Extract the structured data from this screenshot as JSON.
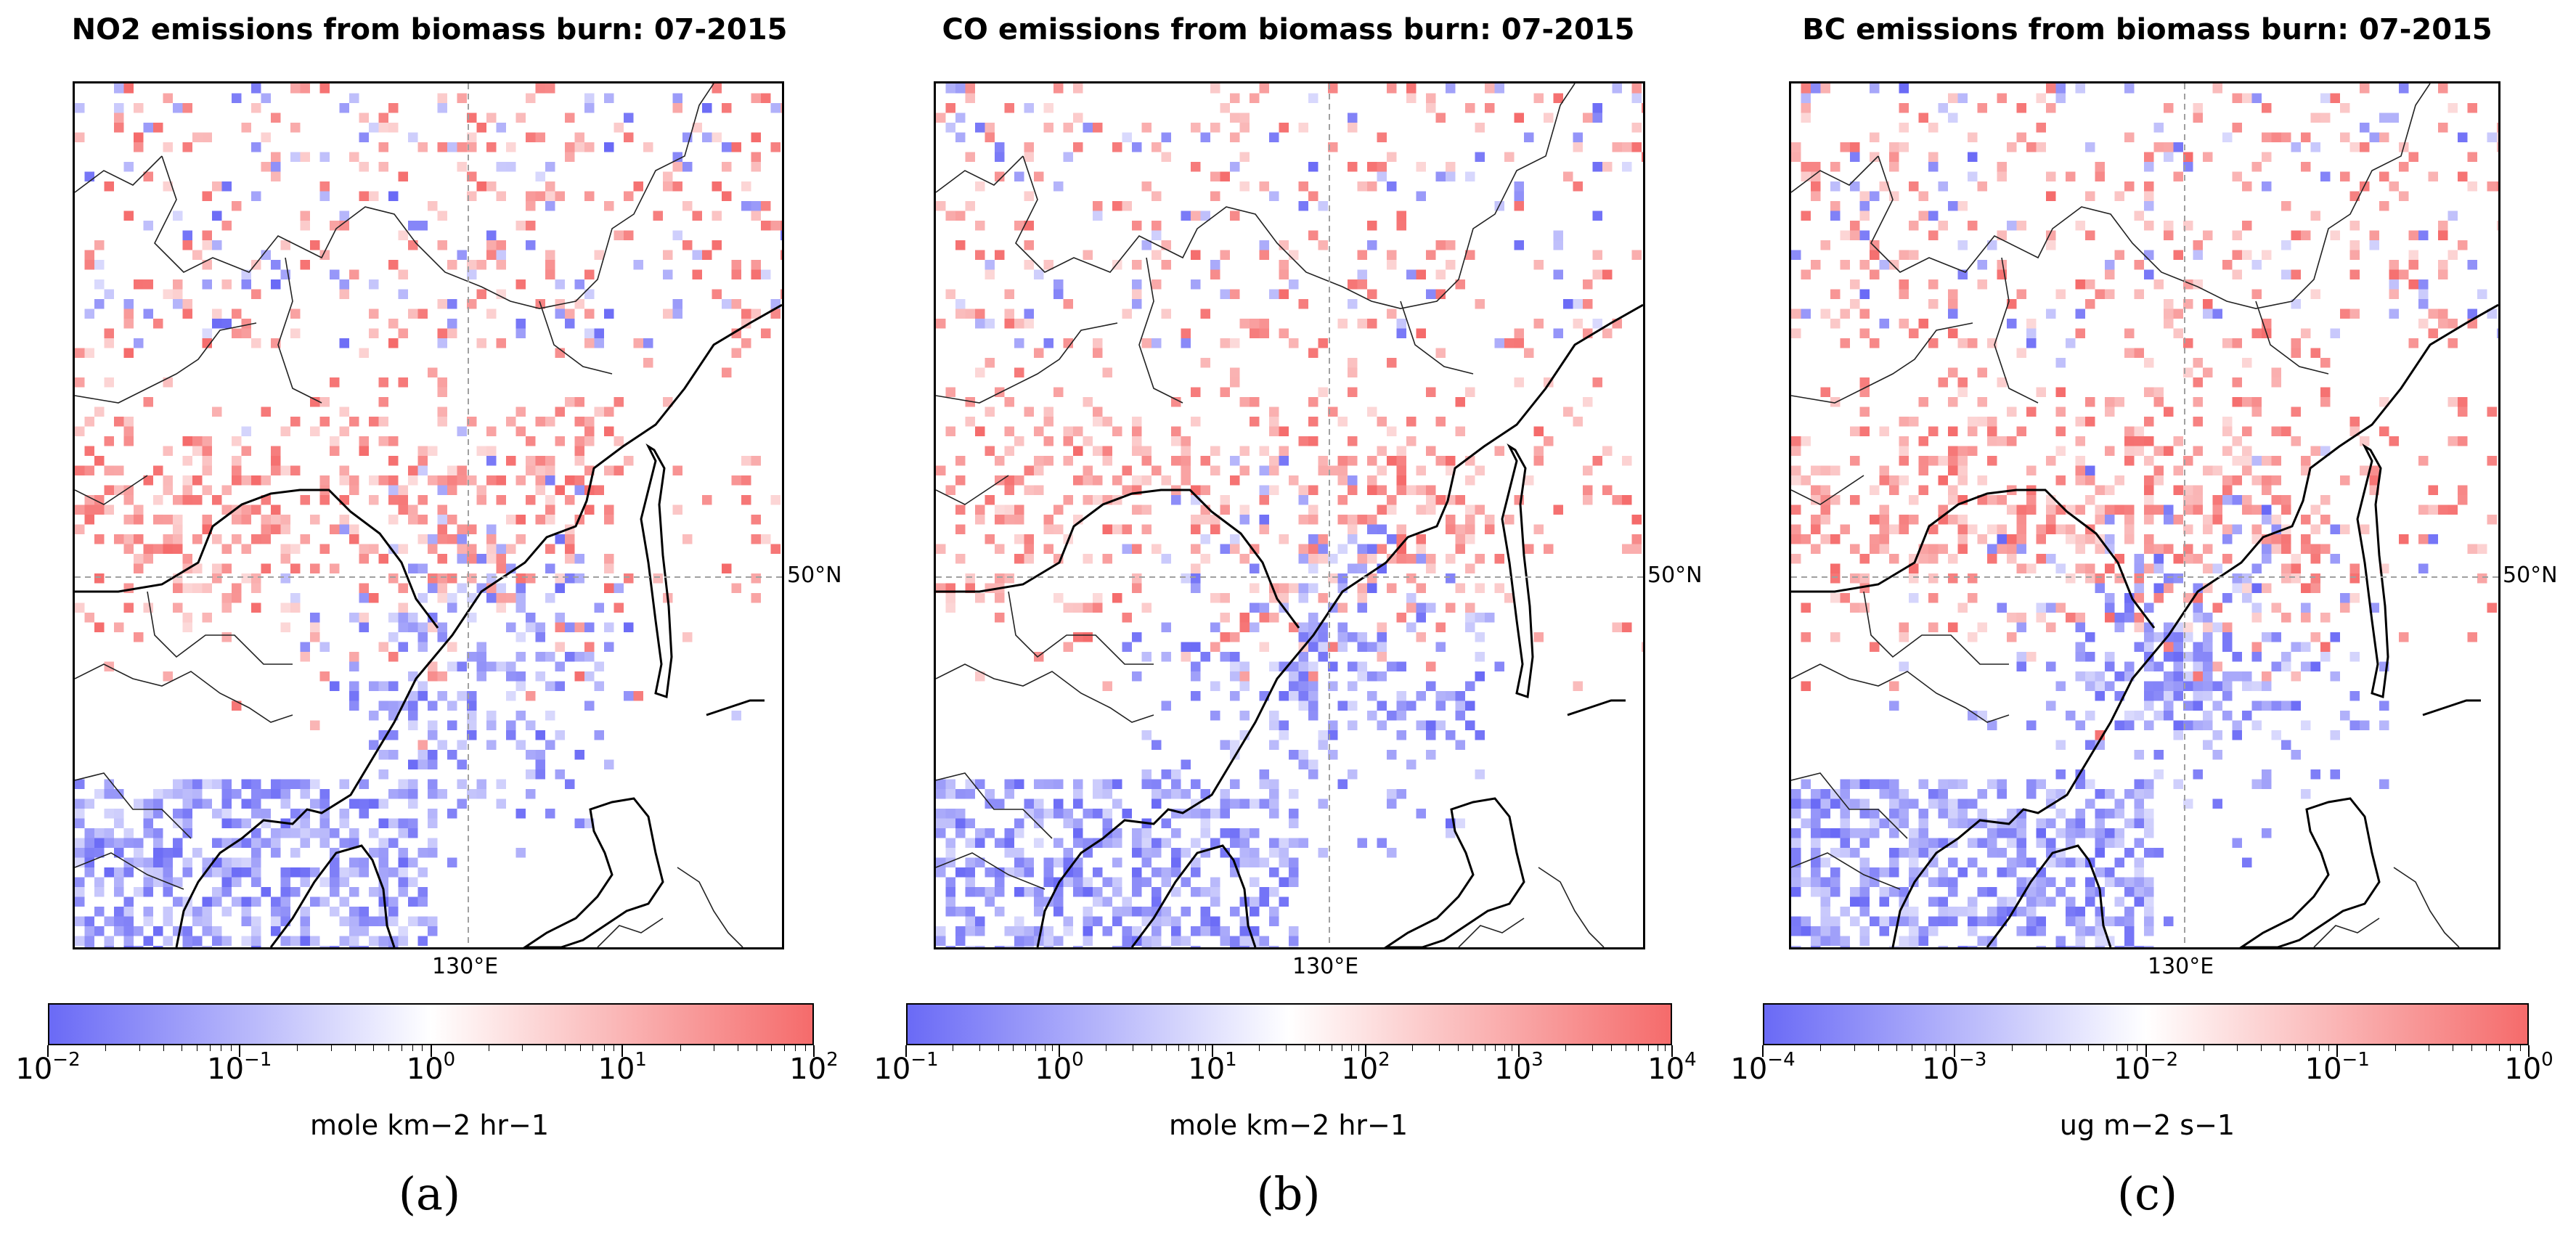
{
  "panels": [
    {
      "title": "NO2 emissions from biomass burn: 07-2015",
      "colorbar_label": "mole km−2 hr−1",
      "ticks": [
        {
          "base": "10",
          "exp": "−2"
        },
        {
          "base": "10",
          "exp": "−1"
        },
        {
          "base": "10",
          "exp": "0"
        },
        {
          "base": "10",
          "exp": "1"
        },
        {
          "base": "10",
          "exp": "2"
        }
      ],
      "lat_label": "50°N",
      "lon_label": "130°E",
      "sublabel": "(a)"
    },
    {
      "title": "CO emissions from biomass burn: 07-2015",
      "colorbar_label": "mole km−2 hr−1",
      "ticks": [
        {
          "base": "10",
          "exp": "−1"
        },
        {
          "base": "10",
          "exp": "0"
        },
        {
          "base": "10",
          "exp": "1"
        },
        {
          "base": "10",
          "exp": "2"
        },
        {
          "base": "10",
          "exp": "3"
        },
        {
          "base": "10",
          "exp": "4"
        }
      ],
      "lat_label": "50°N",
      "lon_label": "130°E",
      "sublabel": "(b)"
    },
    {
      "title": "BC emissions from biomass burn: 07-2015",
      "colorbar_label": "ug m−2 s−1",
      "ticks": [
        {
          "base": "10",
          "exp": "−4"
        },
        {
          "base": "10",
          "exp": "−3"
        },
        {
          "base": "10",
          "exp": "−2"
        },
        {
          "base": "10",
          "exp": "−1"
        },
        {
          "base": "10",
          "exp": "0"
        }
      ],
      "lat_label": "50°N",
      "lon_label": "130°E",
      "sublabel": "(c)"
    }
  ],
  "colors": {
    "low": "#6a6af6",
    "mid": "#ffffff",
    "high": "#f56b6b",
    "grid": "#a0a0a0"
  }
}
